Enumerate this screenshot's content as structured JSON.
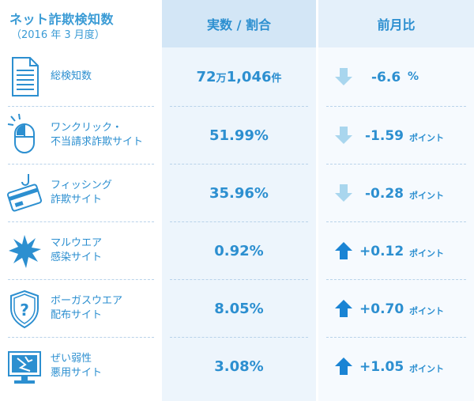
{
  "header": {
    "title": "ネット詐欺検知数",
    "subtitle": "（2016 年 3 月度）",
    "col_value": "実数 / 割合",
    "col_change": "前月比"
  },
  "colors": {
    "text_blue": "#2c8fd0",
    "header_blue": "#d3e6f6",
    "down_arrow": "#a9d6ee",
    "up_arrow": "#1a84d4"
  },
  "rows": [
    {
      "icon": "document-icon",
      "label_line1": "総検知数",
      "label_line2": "",
      "value_main": "72",
      "value_unit1": "万",
      "value_rest": "1,046",
      "value_unit2": "件",
      "direction": "down",
      "change": "-6.6",
      "change_unit": "%"
    },
    {
      "icon": "mouse-click-icon",
      "label_line1": "ワンクリック・",
      "label_line2": "不当請求詐欺サイト",
      "value_main": "51.99%",
      "direction": "down",
      "change": "-1.59",
      "change_unit": "ポイント"
    },
    {
      "icon": "hooked-card-icon",
      "label_line1": "フィッシング",
      "label_line2": "詐欺サイト",
      "value_main": "35.96%",
      "direction": "down",
      "change": "-0.28",
      "change_unit": "ポイント"
    },
    {
      "icon": "malware-burst-icon",
      "label_line1": "マルウエア",
      "label_line2": "感染サイト",
      "value_main": "0.92%",
      "direction": "up",
      "change": "+0.12",
      "change_unit": "ポイント"
    },
    {
      "icon": "question-shield-icon",
      "label_line1": "ボーガスウエア",
      "label_line2": "配布サイト",
      "value_main": "8.05%",
      "direction": "up",
      "change": "+0.70",
      "change_unit": "ポイント"
    },
    {
      "icon": "broken-monitor-icon",
      "label_line1": "ぜい弱性",
      "label_line2": "悪用サイト",
      "value_main": "3.08%",
      "direction": "up",
      "change": "+1.05",
      "change_unit": "ポイント"
    }
  ]
}
